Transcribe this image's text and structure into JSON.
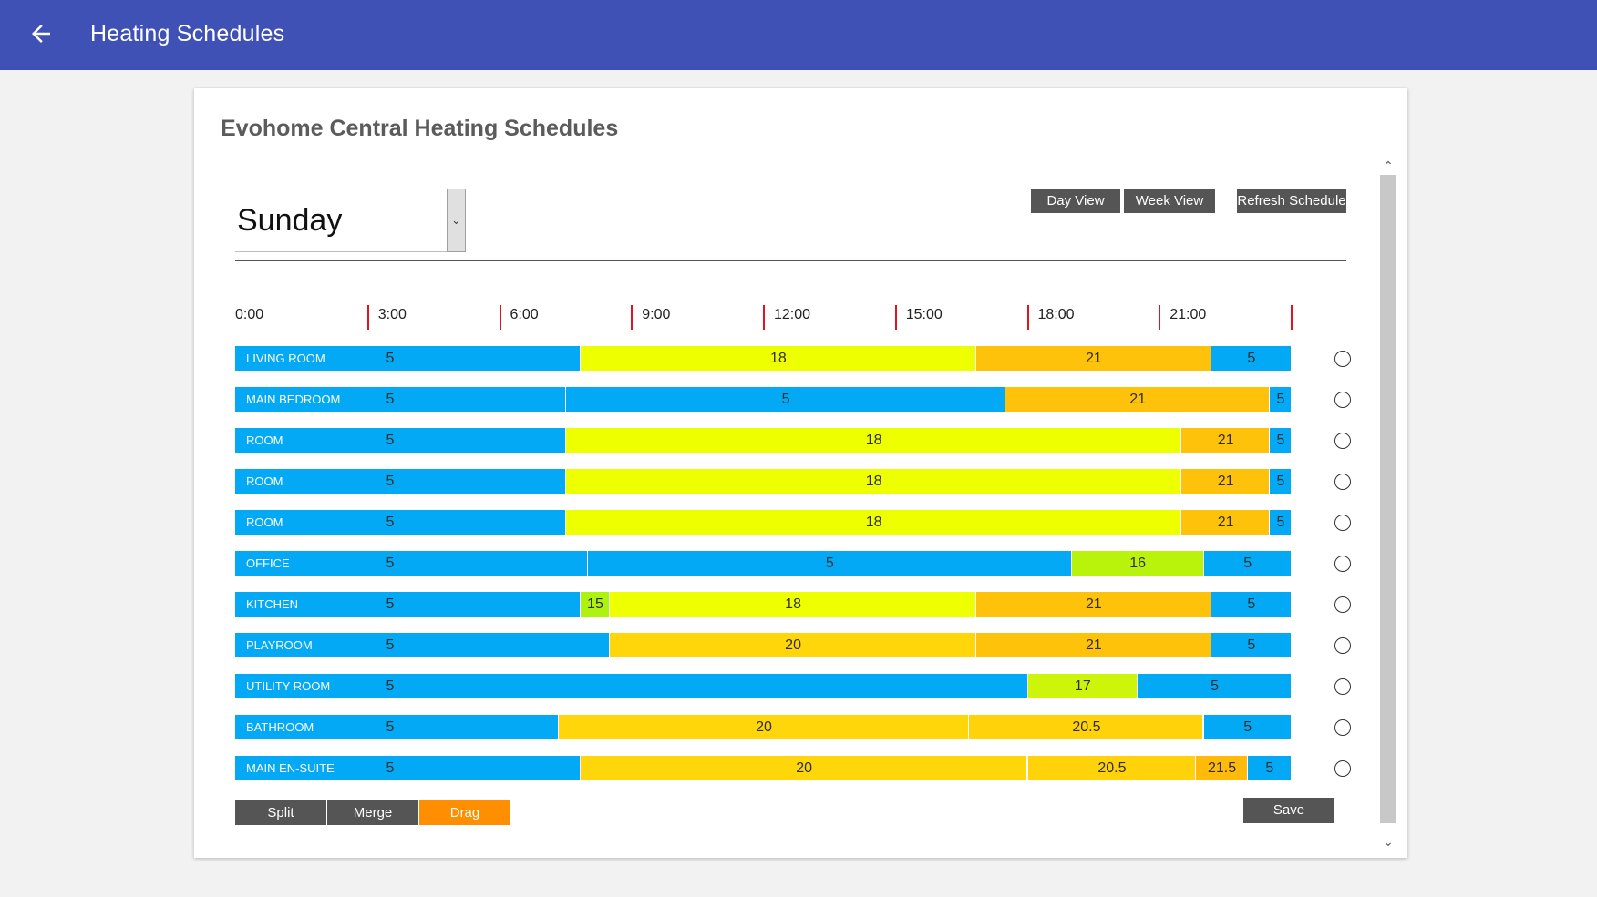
{
  "appbar": {
    "title": "Heating Schedules",
    "back_icon": "arrow-left-icon"
  },
  "card": {
    "title": "Evohome Central Heating Schedules"
  },
  "day_select": {
    "value": "Sunday",
    "icon": "chevron-down-icon"
  },
  "view_buttons": {
    "day": "Day View",
    "week": "Week View",
    "refresh": "Refresh Schedule"
  },
  "timeline": {
    "hours_span": 24,
    "labels": [
      "0:00",
      "3:00",
      "6:00",
      "9:00",
      "12:00",
      "15:00",
      "18:00",
      "21:00"
    ]
  },
  "colors": {
    "5": "#03a9f4",
    "15": "#aef20f",
    "16": "#b9f20a",
    "17": "#cdf50a",
    "18": "#eeff00",
    "20": "#ffd60a",
    "20.5": "#ffd20a",
    "21": "#ffc20a",
    "21.5": "#ffba0a",
    "appbar": "#3f51b5",
    "drag_button": "#ff8f00",
    "button": "#555555",
    "tick": "#e0141e"
  },
  "rooms": [
    {
      "name": "LIVING ROOM",
      "segments": [
        {
          "start": 0,
          "temp": "5"
        },
        {
          "start": 7.83,
          "temp": "18"
        },
        {
          "start": 16.83,
          "temp": "21"
        },
        {
          "start": 22.17,
          "temp": "5"
        }
      ]
    },
    {
      "name": "MAIN BEDROOM",
      "segments": [
        {
          "start": 0,
          "temp": "5"
        },
        {
          "start": 7.5,
          "temp": "5"
        },
        {
          "start": 17.5,
          "temp": "21"
        },
        {
          "start": 23.5,
          "temp": "5"
        }
      ]
    },
    {
      "name": "ROOM",
      "segments": [
        {
          "start": 0,
          "temp": "5"
        },
        {
          "start": 7.5,
          "temp": "18"
        },
        {
          "start": 21.5,
          "temp": "21"
        },
        {
          "start": 23.5,
          "temp": "5"
        }
      ]
    },
    {
      "name": "ROOM",
      "segments": [
        {
          "start": 0,
          "temp": "5"
        },
        {
          "start": 7.5,
          "temp": "18"
        },
        {
          "start": 21.5,
          "temp": "21"
        },
        {
          "start": 23.5,
          "temp": "5"
        }
      ]
    },
    {
      "name": "ROOM",
      "segments": [
        {
          "start": 0,
          "temp": "5"
        },
        {
          "start": 7.5,
          "temp": "18"
        },
        {
          "start": 21.5,
          "temp": "21"
        },
        {
          "start": 23.5,
          "temp": "5"
        }
      ]
    },
    {
      "name": "OFFICE",
      "segments": [
        {
          "start": 0,
          "temp": "5"
        },
        {
          "start": 8,
          "temp": "5"
        },
        {
          "start": 19,
          "temp": "16"
        },
        {
          "start": 22,
          "temp": "5"
        }
      ]
    },
    {
      "name": "KITCHEN",
      "segments": [
        {
          "start": 0,
          "temp": "5"
        },
        {
          "start": 7.83,
          "temp": "15"
        },
        {
          "start": 8.5,
          "temp": "18"
        },
        {
          "start": 16.83,
          "temp": "21"
        },
        {
          "start": 22.17,
          "temp": "5"
        }
      ]
    },
    {
      "name": "PLAYROOM",
      "segments": [
        {
          "start": 0,
          "temp": "5"
        },
        {
          "start": 8.5,
          "temp": "20"
        },
        {
          "start": 16.83,
          "temp": "21"
        },
        {
          "start": 22.17,
          "temp": "5"
        }
      ]
    },
    {
      "name": "UTILITY ROOM",
      "segments": [
        {
          "start": 0,
          "temp": "5"
        },
        {
          "start": 18,
          "temp": "17"
        },
        {
          "start": 20.5,
          "temp": "5"
        }
      ]
    },
    {
      "name": "BATHROOM",
      "segments": [
        {
          "start": 0,
          "temp": "5"
        },
        {
          "start": 7.33,
          "temp": "20"
        },
        {
          "start": 16.67,
          "temp": "20.5"
        },
        {
          "start": 22,
          "temp": "5"
        }
      ]
    },
    {
      "name": "MAIN EN-SUITE",
      "segments": [
        {
          "start": 0,
          "temp": "5"
        },
        {
          "start": 7.83,
          "temp": "20"
        },
        {
          "start": 18,
          "temp": "20.5"
        },
        {
          "start": 21.83,
          "temp": "21.5"
        },
        {
          "start": 23,
          "temp": "5"
        }
      ]
    }
  ],
  "tools": {
    "split": "Split",
    "merge": "Merge",
    "drag": "Drag"
  },
  "save_label": "Save",
  "scroll_icons": {
    "up": "chevron-up-icon",
    "down": "chevron-down-icon"
  }
}
